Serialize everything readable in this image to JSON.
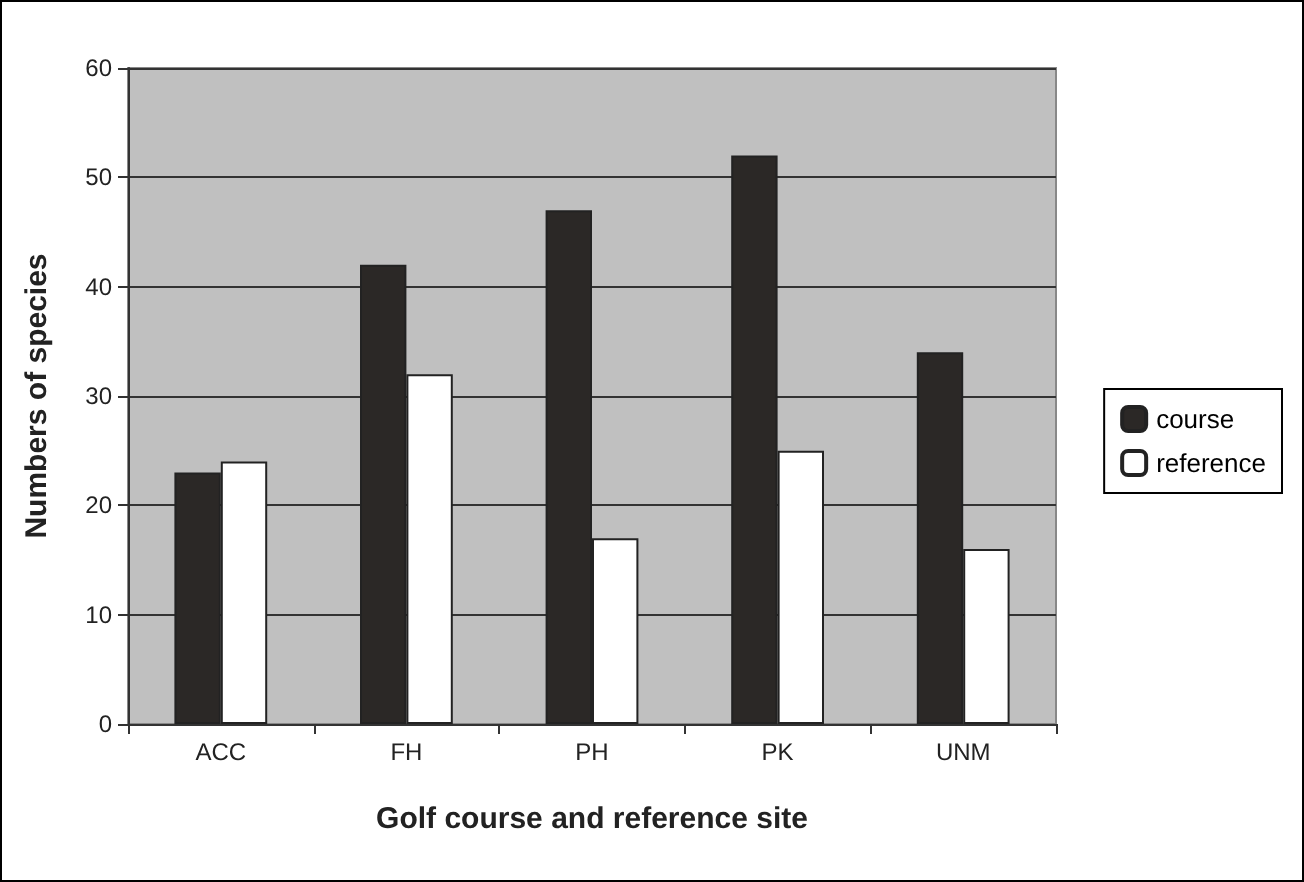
{
  "chart_data": {
    "type": "bar",
    "xlabel": "Golf course and reference site",
    "ylabel": "Numbers of species",
    "categories": [
      "ACC",
      "FH",
      "PH",
      "PK",
      "UNM"
    ],
    "series": [
      {
        "name": "course",
        "color": "#2b2826",
        "values": [
          23,
          42,
          47,
          52,
          34
        ]
      },
      {
        "name": "reference",
        "color": "#ffffff",
        "values": [
          24,
          32,
          17,
          25,
          16
        ]
      }
    ],
    "ylim": [
      0,
      60
    ],
    "yticks": [
      0,
      10,
      20,
      30,
      40,
      50,
      60
    ],
    "grid": "y",
    "legend": "right"
  }
}
